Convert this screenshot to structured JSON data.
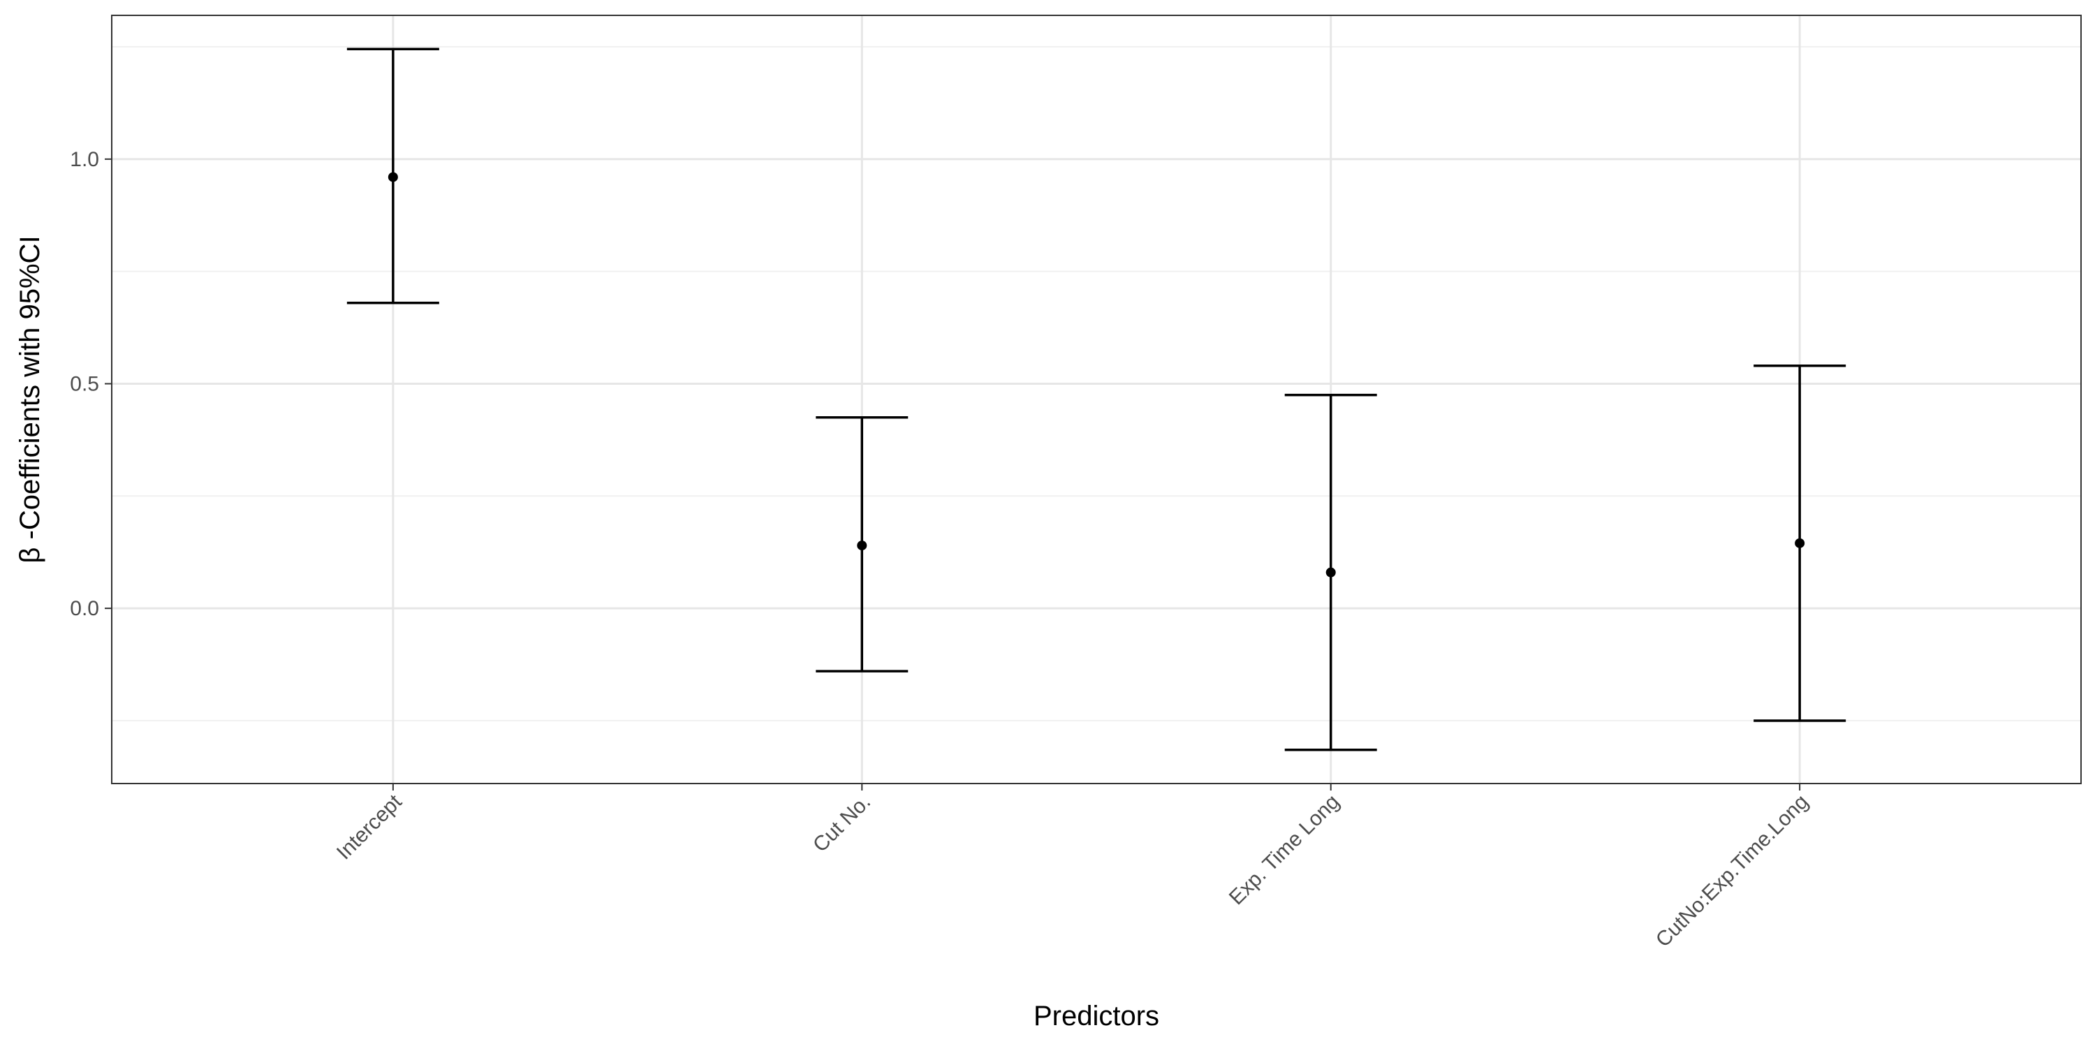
{
  "chart_data": {
    "type": "errorbar",
    "title": "",
    "xlabel": "Predictors",
    "ylabel": "β  -Coefficients with 95%CI",
    "categories": [
      "Intercept",
      "Cut No.",
      "Exp. Time Long",
      "CutNo:Exp.Time.Long"
    ],
    "estimates": [
      0.96,
      0.14,
      0.08,
      0.145
    ],
    "lower": [
      0.68,
      -0.14,
      -0.315,
      -0.25
    ],
    "upper": [
      1.245,
      0.425,
      0.475,
      0.54
    ],
    "ylim": [
      -0.39,
      1.32
    ],
    "yticks": [
      "0.0",
      "0.5",
      "1.0"
    ],
    "ytick_values": [
      0.0,
      0.5,
      1.0
    ],
    "y_minor_gridlines": [
      -0.25,
      0.25,
      0.75,
      1.25
    ],
    "grid": true,
    "legend": "none"
  },
  "colors": {
    "background": "#ffffff",
    "panel_border": "#333333",
    "grid_major": "#e6e6e6",
    "grid_minor": "#f1f1f1",
    "errorbar": "#000000",
    "point": "#000000",
    "tick_text": "#4d4d4d",
    "title_text": "#000000"
  }
}
